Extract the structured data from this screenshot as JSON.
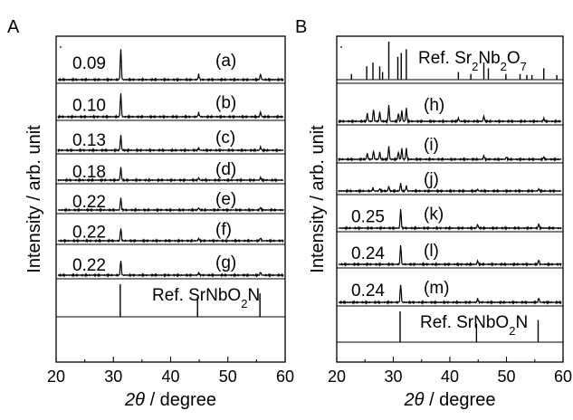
{
  "chart_data": [
    {
      "panel_label": "A",
      "type": "line",
      "xlabel_symbol": "2θ",
      "xlabel_unit": " / degree",
      "ylabel": "Intensity / arb. unit",
      "xlim": [
        20,
        60
      ],
      "xticks": [
        "20",
        "30",
        "40",
        "50",
        "60"
      ],
      "grid": false,
      "traces": [
        {
          "label": "(a)",
          "value": "0.09",
          "peaks": [
            [
              31.3,
              1.0
            ],
            [
              44.9,
              0.17
            ],
            [
              55.7,
              0.18
            ]
          ]
        },
        {
          "label": "(b)",
          "value": "0.10",
          "peaks": [
            [
              31.3,
              1.0
            ],
            [
              44.9,
              0.17
            ],
            [
              55.7,
              0.2
            ]
          ]
        },
        {
          "label": "(c)",
          "value": "0.13",
          "peaks": [
            [
              31.3,
              0.72
            ],
            [
              44.9,
              0.12
            ],
            [
              55.7,
              0.15
            ]
          ]
        },
        {
          "label": "(d)",
          "value": "0.18",
          "peaks": [
            [
              31.3,
              0.7
            ],
            [
              44.9,
              0.12
            ],
            [
              55.7,
              0.15
            ]
          ]
        },
        {
          "label": "(e)",
          "value": "0.22",
          "peaks": [
            [
              31.3,
              0.68
            ],
            [
              44.9,
              0.12
            ],
            [
              55.7,
              0.15
            ]
          ]
        },
        {
          "label": "(f)",
          "value": "0.22",
          "peaks": [
            [
              31.3,
              0.68
            ],
            [
              44.9,
              0.12
            ],
            [
              55.7,
              0.15
            ]
          ]
        },
        {
          "label": "(g)",
          "value": "0.22",
          "peaks": [
            [
              31.3,
              0.7
            ],
            [
              44.9,
              0.12
            ],
            [
              55.7,
              0.15
            ]
          ]
        },
        {
          "label_prefix": "Ref. SrNbO",
          "label_sub": "2",
          "label_suffix": "N",
          "stick": true,
          "peaks": [
            [
              31.2,
              1.0
            ],
            [
              44.7,
              0.6
            ],
            [
              55.6,
              0.72
            ]
          ]
        }
      ]
    },
    {
      "panel_label": "B",
      "type": "line",
      "xlabel_symbol": "2θ",
      "xlabel_unit": " / degree",
      "ylabel": "Intensity / arb. unit",
      "xlim": [
        20,
        60
      ],
      "xticks": [
        "20",
        "30",
        "40",
        "50",
        "60"
      ],
      "grid": false,
      "traces": [
        {
          "label_parts": [
            "Ref. Sr",
            "2",
            "Nb",
            "2",
            "O",
            "7"
          ],
          "stick": true,
          "peaks": [
            [
              22.6,
              0.15
            ],
            [
              25.3,
              0.35
            ],
            [
              26.4,
              0.45
            ],
            [
              27.6,
              0.35
            ],
            [
              28.1,
              0.2
            ],
            [
              29.2,
              1.0
            ],
            [
              30.8,
              0.6
            ],
            [
              31.4,
              0.7
            ],
            [
              32.3,
              0.8
            ],
            [
              41.5,
              0.2
            ],
            [
              43.7,
              0.15
            ],
            [
              46.0,
              0.45
            ],
            [
              46.8,
              0.3
            ],
            [
              49.9,
              0.15
            ],
            [
              52.4,
              0.15
            ],
            [
              53.6,
              0.12
            ],
            [
              54.5,
              0.12
            ],
            [
              56.6,
              0.3
            ],
            [
              58.9,
              0.12
            ]
          ]
        },
        {
          "label": "(h)",
          "peaks": [
            [
              25.4,
              0.3
            ],
            [
              26.5,
              0.45
            ],
            [
              27.6,
              0.35
            ],
            [
              29.2,
              0.6
            ],
            [
              30.9,
              0.3
            ],
            [
              31.5,
              0.4
            ],
            [
              32.3,
              0.5
            ],
            [
              41.5,
              0.12
            ],
            [
              46.0,
              0.2
            ],
            [
              56.6,
              0.1
            ]
          ]
        },
        {
          "label": "(i)",
          "peaks": [
            [
              25.4,
              0.25
            ],
            [
              26.5,
              0.35
            ],
            [
              27.6,
              0.3
            ],
            [
              29.2,
              0.55
            ],
            [
              30.9,
              0.3
            ],
            [
              31.5,
              0.45
            ],
            [
              32.3,
              0.45
            ],
            [
              46.0,
              0.15
            ],
            [
              50.0,
              0.1
            ],
            [
              56.6,
              0.1
            ]
          ]
        },
        {
          "label": "(j)",
          "peaks": [
            [
              26.4,
              0.15
            ],
            [
              27.6,
              0.12
            ],
            [
              29.2,
              0.25
            ],
            [
              31.3,
              0.4
            ],
            [
              32.3,
              0.25
            ],
            [
              44.9,
              0.08
            ],
            [
              55.7,
              0.1
            ]
          ]
        },
        {
          "label": "(k)",
          "value": "0.25",
          "peaks": [
            [
              31.3,
              0.8
            ],
            [
              44.9,
              0.15
            ],
            [
              55.7,
              0.18
            ]
          ]
        },
        {
          "label": "(l)",
          "value": "0.24",
          "peaks": [
            [
              31.3,
              0.85
            ],
            [
              44.9,
              0.15
            ],
            [
              55.7,
              0.2
            ]
          ]
        },
        {
          "label": "(m)",
          "value": "0.24",
          "peaks": [
            [
              31.3,
              0.75
            ],
            [
              44.9,
              0.15
            ],
            [
              55.7,
              0.18
            ]
          ]
        },
        {
          "label_prefix": "Ref. SrNbO",
          "label_sub": "2",
          "label_suffix": "N",
          "stick": true,
          "peaks": [
            [
              31.2,
              1.0
            ],
            [
              44.7,
              0.6
            ],
            [
              55.6,
              0.72
            ]
          ]
        }
      ]
    }
  ]
}
